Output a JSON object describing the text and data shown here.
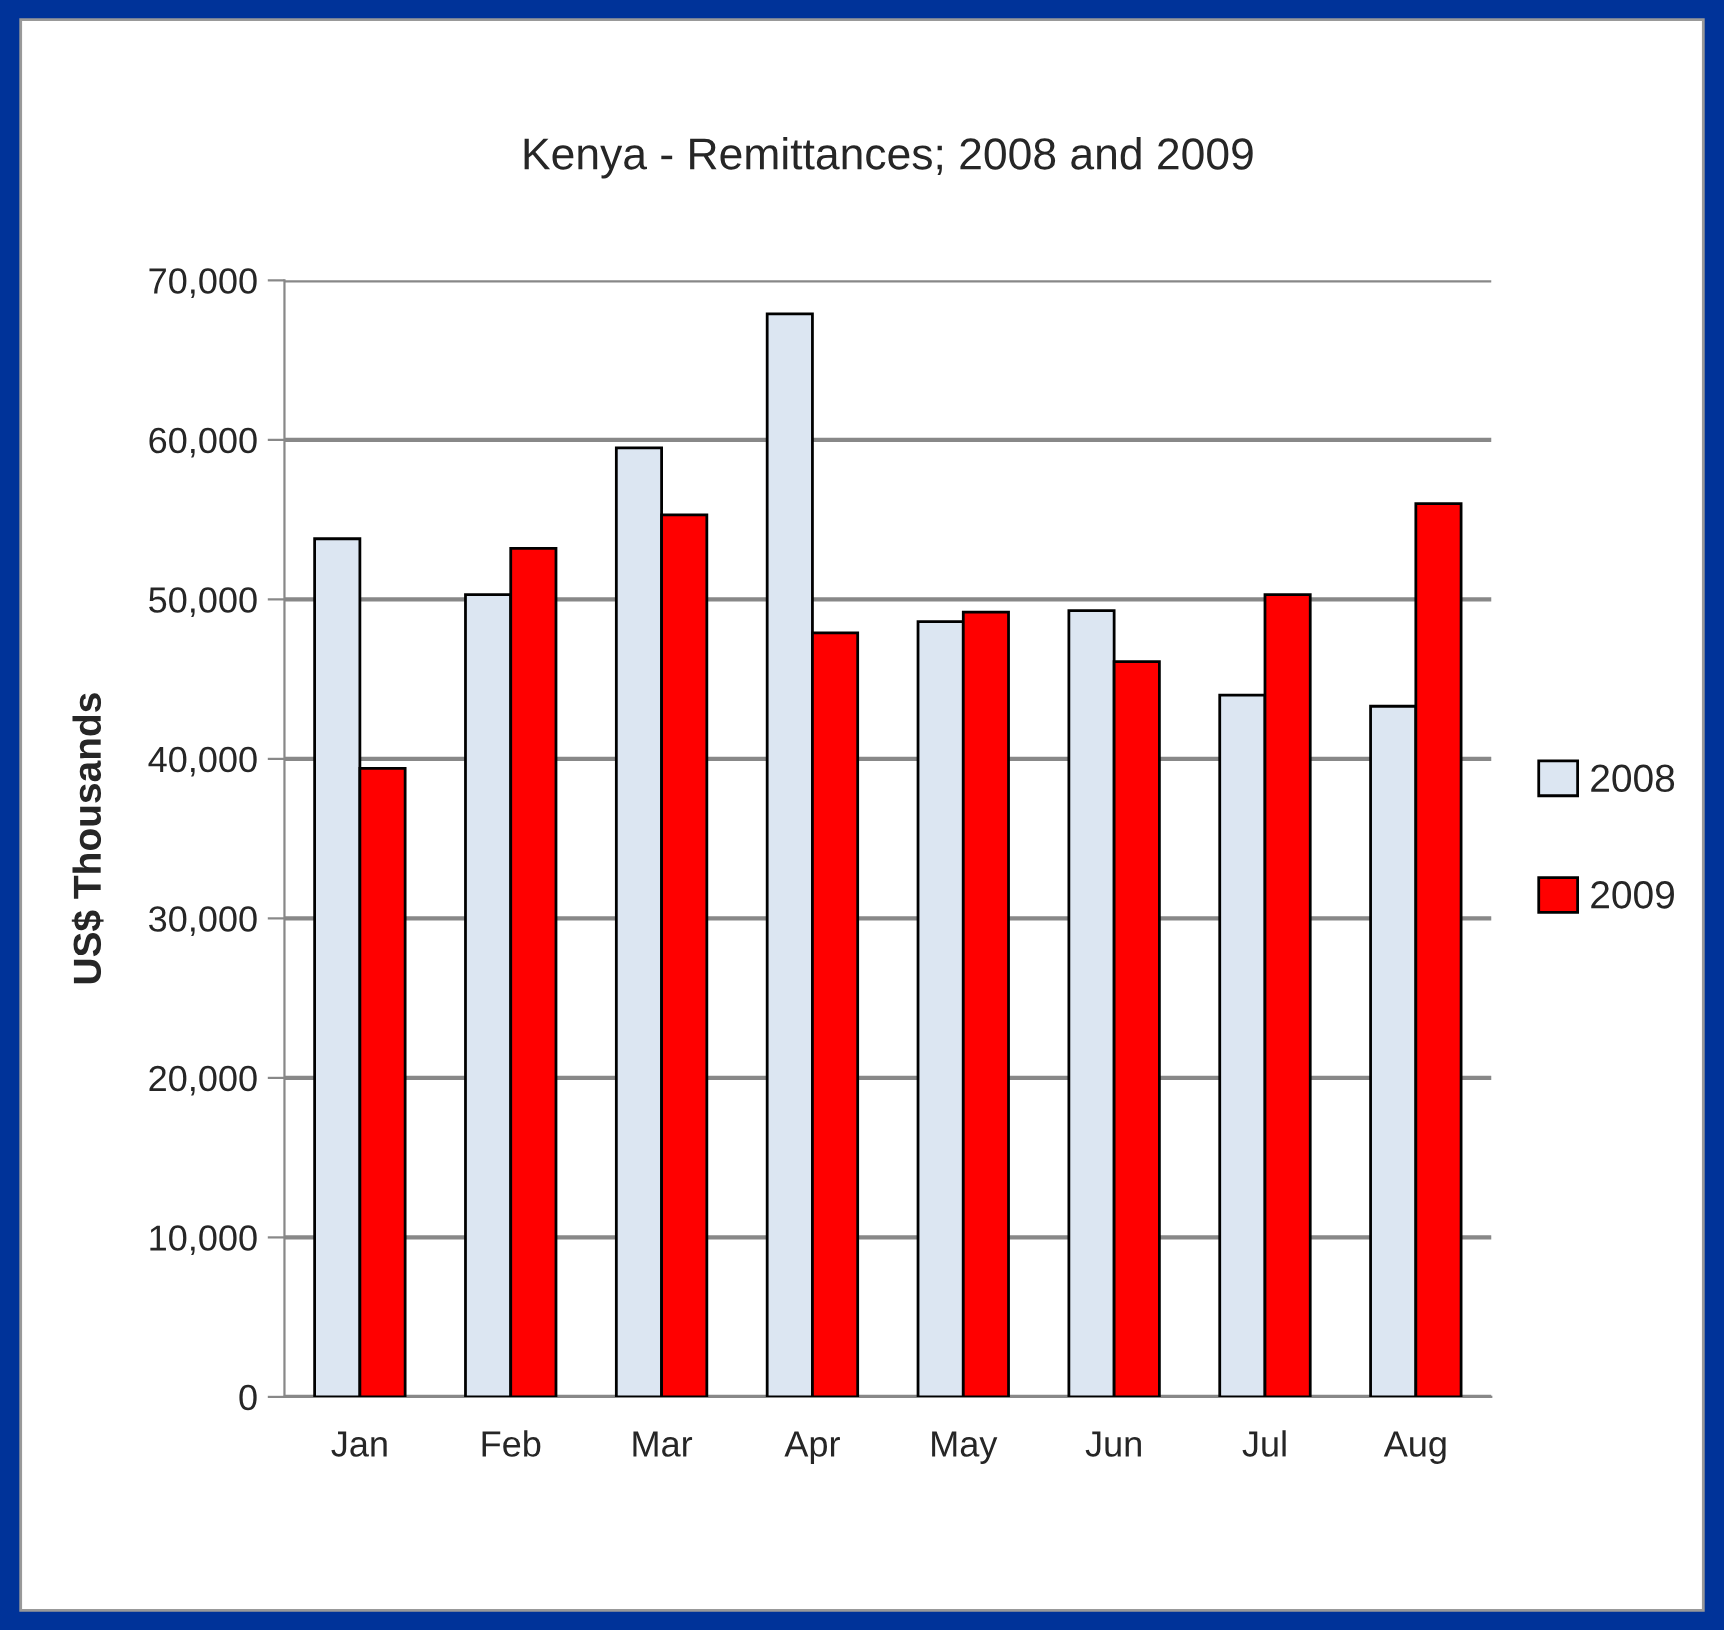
{
  "chart_data": {
    "type": "bar",
    "title": "Kenya - Remittances; 2008 and 2009",
    "ylabel": "US$ Thousands",
    "categories": [
      "Jan",
      "Feb",
      "Mar",
      "Apr",
      "May",
      "Jun",
      "Jul",
      "Aug"
    ],
    "series": [
      {
        "name": "2008",
        "color": "#dce6f2",
        "values": [
          53800,
          50300,
          59500,
          67900,
          48600,
          49300,
          44000,
          43300
        ]
      },
      {
        "name": "2009",
        "color": "#ff0000",
        "values": [
          39400,
          53200,
          55300,
          47900,
          49200,
          46100,
          50300,
          56000
        ]
      }
    ],
    "ylim": [
      0,
      70000
    ],
    "yticks": [
      {
        "value": 0,
        "label": "0"
      },
      {
        "value": 10000,
        "label": "10,000"
      },
      {
        "value": 20000,
        "label": "20,000"
      },
      {
        "value": 30000,
        "label": "30,000"
      },
      {
        "value": 40000,
        "label": "40,000"
      },
      {
        "value": 50000,
        "label": "50,000"
      },
      {
        "value": 60000,
        "label": "60,000"
      },
      {
        "value": 70000,
        "label": "70,000"
      }
    ],
    "grid": "y",
    "legend": "right"
  }
}
